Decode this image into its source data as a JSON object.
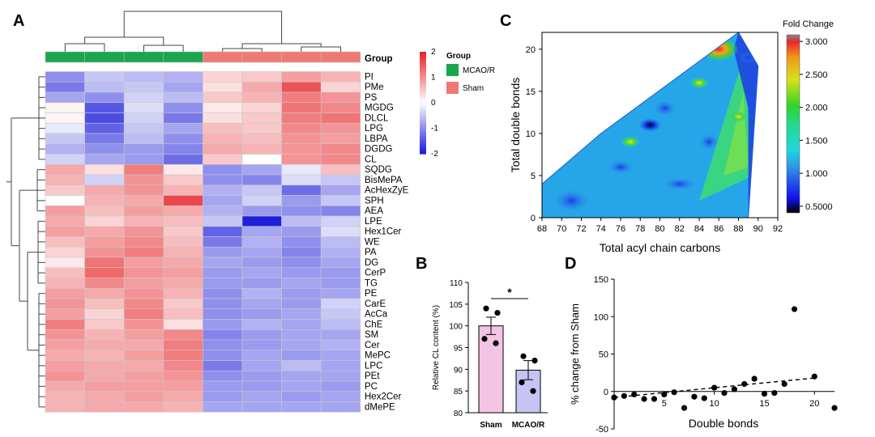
{
  "panels": {
    "a": "A",
    "b": "B",
    "c": "C",
    "d": "D"
  },
  "chart_data": [
    {
      "type": "heatmap",
      "panel": "A",
      "group_header": "Group",
      "column_groups": [
        "MCAO/R",
        "MCAO/R",
        "MCAO/R",
        "MCAO/R",
        "Sham",
        "Sham",
        "Sham",
        "Sham"
      ],
      "legend": {
        "title": "Group",
        "entries": [
          {
            "label": "MCAO/R",
            "color": "#1aa64b"
          },
          {
            "label": "Sham",
            "color": "#f07a72"
          }
        ]
      },
      "colorbar": {
        "ticks": [
          "2",
          "1",
          "0",
          "-1",
          "-2"
        ],
        "range": [
          -2,
          2
        ],
        "low_color": "#1f1fdc",
        "mid_color": "#ffffff",
        "high_color": "#e8272a"
      },
      "rows": [
        "PI",
        "PMe",
        "PS",
        "MGDG",
        "DLCL",
        "LPG",
        "LBPA",
        "DGDG",
        "CL",
        "SQDG",
        "BisMePA",
        "AcHexZyE",
        "SPH",
        "AEA",
        "LPE",
        "Hex1Cer",
        "WE",
        "PA",
        "DG",
        "CerP",
        "TG",
        "PE",
        "CarE",
        "AcCa",
        "ChE",
        "SM",
        "Cer",
        "MePC",
        "LPC",
        "PEt",
        "PC",
        "Hex2Cer",
        "dMePE"
      ],
      "values": [
        [
          -1.0,
          -0.5,
          -0.6,
          -0.7,
          0.4,
          0.5,
          0.9,
          0.7
        ],
        [
          -1.2,
          -0.6,
          -0.5,
          -0.8,
          0.3,
          0.8,
          1.6,
          0.4
        ],
        [
          -0.8,
          -1.0,
          -0.4,
          -0.6,
          0.5,
          0.7,
          1.2,
          1.0
        ],
        [
          0.1,
          -1.5,
          -0.3,
          -1.0,
          0.2,
          0.4,
          1.3,
          1.1
        ],
        [
          0.1,
          -1.6,
          -0.4,
          -1.2,
          0.3,
          0.5,
          1.2,
          1.3
        ],
        [
          -0.2,
          -1.4,
          -0.5,
          -0.8,
          0.6,
          0.5,
          1.1,
          1.0
        ],
        [
          -0.5,
          -1.2,
          -0.6,
          -1.0,
          0.7,
          0.6,
          1.0,
          0.9
        ],
        [
          -0.7,
          -1.0,
          -0.9,
          -1.1,
          0.8,
          0.7,
          1.0,
          1.1
        ],
        [
          -0.4,
          -0.8,
          -0.9,
          -1.3,
          0.5,
          0.0,
          1.0,
          1.1
        ],
        [
          0.8,
          0.3,
          1.2,
          0.2,
          -1.0,
          -0.8,
          -0.2,
          0.6
        ],
        [
          0.7,
          -0.4,
          1.0,
          0.5,
          -1.0,
          -1.1,
          -0.3,
          -0.5
        ],
        [
          0.5,
          0.8,
          1.0,
          0.7,
          -0.7,
          -0.5,
          -1.3,
          -0.8
        ],
        [
          0.0,
          0.7,
          0.8,
          1.7,
          -0.8,
          -0.4,
          -0.9,
          -0.5
        ],
        [
          0.9,
          0.6,
          0.9,
          0.8,
          -0.7,
          -0.9,
          -1.0,
          -1.1
        ],
        [
          0.8,
          0.4,
          0.7,
          0.6,
          -0.5,
          -2.0,
          -0.6,
          -0.4
        ],
        [
          0.9,
          0.8,
          1.0,
          0.5,
          -1.4,
          -0.8,
          -0.9,
          -0.3
        ],
        [
          0.6,
          0.9,
          1.1,
          0.6,
          -1.2,
          -0.7,
          -1.0,
          -0.6
        ],
        [
          0.4,
          1.0,
          1.2,
          0.7,
          -0.9,
          -0.8,
          -1.1,
          -0.7
        ],
        [
          0.2,
          1.3,
          0.9,
          0.8,
          -0.8,
          -0.9,
          -1.0,
          -0.8
        ],
        [
          0.6,
          1.4,
          1.0,
          0.9,
          -0.9,
          -0.8,
          -0.9,
          -0.9
        ],
        [
          0.7,
          1.1,
          0.9,
          0.8,
          -0.9,
          -0.9,
          -0.8,
          -0.9
        ],
        [
          0.9,
          0.8,
          1.0,
          0.7,
          -1.0,
          -0.7,
          -0.9,
          -0.8
        ],
        [
          1.0,
          0.6,
          1.1,
          0.5,
          -1.0,
          -0.8,
          -0.9,
          -0.4
        ],
        [
          0.9,
          0.4,
          1.2,
          0.6,
          -1.0,
          -0.9,
          -0.8,
          -0.5
        ],
        [
          1.2,
          0.5,
          1.0,
          0.3,
          -0.9,
          -0.7,
          -0.8,
          -0.6
        ],
        [
          1.0,
          0.7,
          0.9,
          1.1,
          -1.1,
          -0.9,
          -0.8,
          -0.8
        ],
        [
          0.9,
          0.8,
          0.8,
          1.2,
          -1.0,
          -0.9,
          -0.8,
          -0.7
        ],
        [
          0.8,
          0.7,
          0.9,
          1.2,
          -1.0,
          -0.8,
          -0.9,
          -0.8
        ],
        [
          0.9,
          0.8,
          0.8,
          1.1,
          -1.2,
          -0.8,
          -0.6,
          -0.8
        ],
        [
          1.0,
          0.8,
          0.9,
          1.0,
          -1.0,
          -0.9,
          -0.8,
          -0.8
        ],
        [
          0.8,
          0.9,
          0.9,
          0.9,
          -0.9,
          -0.9,
          -0.8,
          -0.9
        ],
        [
          0.7,
          0.8,
          0.9,
          0.8,
          -0.9,
          -0.8,
          -0.9,
          -0.8
        ],
        [
          0.7,
          0.8,
          0.8,
          0.7,
          -0.8,
          -0.8,
          -0.8,
          -0.8
        ]
      ]
    },
    {
      "type": "bar",
      "panel": "B",
      "categories": [
        "Sham",
        "MCAO/R"
      ],
      "values": [
        100,
        89.8
      ],
      "sem": [
        2.0,
        2.2
      ],
      "points": [
        [
          104,
          103,
          97,
          96
        ],
        [
          93,
          92,
          87,
          85
        ]
      ],
      "colors": [
        "#f3c4e4",
        "#c7c3f3"
      ],
      "ylabel": "Relative CL content (%)",
      "ylim": [
        80,
        110
      ],
      "yticks": [
        "80",
        "85",
        "90",
        "95",
        "100",
        "105",
        "110"
      ],
      "significance": "*"
    },
    {
      "type": "heatmap",
      "panel": "C",
      "subtype": "contour",
      "xlabel": "Total acyl chain carbons",
      "ylabel": "Total double bonds",
      "xlim": [
        68,
        92
      ],
      "ylim": [
        0,
        22
      ],
      "xticks": [
        "68",
        "70",
        "72",
        "74",
        "76",
        "78",
        "80",
        "82",
        "84",
        "86",
        "88",
        "90",
        "92"
      ],
      "yticks": [
        "0",
        "5",
        "10",
        "15",
        "20"
      ],
      "colorbar_title": "Fold Change",
      "colorbar_ticks": [
        "3.000",
        "2.500",
        "2.000",
        "1.500",
        "1.000",
        "0.5000"
      ],
      "colorbar_range": [
        0.4,
        3.1
      ],
      "domain_outline": [
        [
          68,
          0
        ],
        [
          89,
          0
        ],
        [
          90,
          18
        ],
        [
          88,
          22
        ],
        [
          74,
          10
        ],
        [
          68,
          4
        ]
      ],
      "hotspots": [
        {
          "x": 86,
          "y": 20,
          "value": 2.8
        },
        {
          "x": 84,
          "y": 16,
          "value": 2.1
        },
        {
          "x": 88,
          "y": 12,
          "value": 2.0
        },
        {
          "x": 77,
          "y": 9,
          "value": 2.1
        },
        {
          "x": 79,
          "y": 11,
          "value": 0.45
        },
        {
          "x": 89,
          "y": 19,
          "value": 0.6
        }
      ]
    },
    {
      "type": "scatter",
      "panel": "D",
      "xlabel": "Double bonds",
      "ylabel": "% change from Sham",
      "xlim": [
        0,
        22
      ],
      "ylim": [
        -50,
        150
      ],
      "xticks": [
        "5",
        "10",
        "15",
        "20"
      ],
      "yticks": [
        "-50",
        "0",
        "50",
        "100",
        "150"
      ],
      "x": [
        0,
        1,
        2,
        3,
        4,
        5,
        6,
        7,
        8,
        9,
        10,
        11,
        12,
        13,
        14,
        15,
        16,
        17,
        18,
        20,
        22
      ],
      "y": [
        -8,
        -6,
        -4,
        -10,
        -10,
        -4,
        -1,
        -22,
        -7,
        -9,
        5,
        -2,
        3,
        10,
        17,
        -3,
        -2,
        10,
        110,
        20,
        -22
      ],
      "trendline": {
        "x": [
          0,
          20
        ],
        "y": [
          -8,
          18
        ]
      }
    }
  ]
}
